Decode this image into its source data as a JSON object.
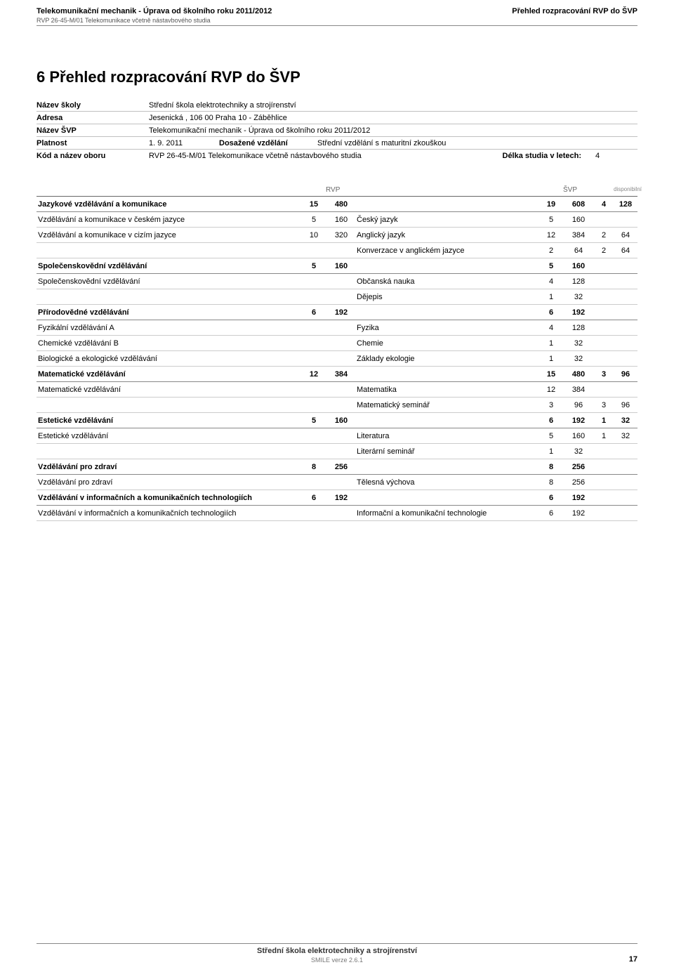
{
  "header": {
    "left_line1": "Telekomunikační mechanik - Úprava od školního roku 2011/2012",
    "left_line2": "RVP 26-45-M/01 Telekomunikace včetně nástavbového studia",
    "right": "Přehled rozpracování RVP do ŠVP"
  },
  "section_title": "6 Přehled rozpracování RVP do ŠVP",
  "info": {
    "nazev_skoly_label": "Název školy",
    "nazev_skoly": "Střední škola elektrotechniky a strojírenství",
    "adresa_label": "Adresa",
    "adresa": "Jesenická , 106 00  Praha 10 - Záběhlice",
    "nazev_svp_label": "Název ŠVP",
    "nazev_svp": "Telekomunikační mechanik - Úprava od školního roku 2011/2012",
    "platnost_label": "Platnost",
    "platnost": "1. 9. 2011",
    "dosazene_label": "Dosažené vzdělání",
    "dosazene": "Střední vzdělání s maturitní zkouškou",
    "kod_label": "Kód a název oboru",
    "kod": "RVP 26-45-M/01 Telekomunikace včetně nástavbového studia",
    "delka_label": "Délka studia v letech:",
    "delka": "4"
  },
  "thead": {
    "rvp": "RVP",
    "svp": "ŠVP",
    "disp": "disponibilní"
  },
  "rows": [
    {
      "type": "section",
      "name": "Jazykové vzdělávání a komunikace",
      "a": "15",
      "b": "480",
      "c": "19",
      "d": "608",
      "e": "4",
      "f": "128"
    },
    {
      "type": "sub",
      "name": "Vzdělávání a komunikace v českém jazyce",
      "a": "5",
      "b": "160",
      "subj": "Český jazyk",
      "c": "5",
      "d": "160",
      "e": "",
      "f": ""
    },
    {
      "type": "sub",
      "name": "Vzdělávání a komunikace v cizím jazyce",
      "a": "10",
      "b": "320",
      "subj": "Anglický jazyk",
      "c": "12",
      "d": "384",
      "e": "2",
      "f": "64"
    },
    {
      "type": "cont",
      "subj": "Konverzace v anglickém jazyce",
      "c": "2",
      "d": "64",
      "e": "2",
      "f": "64"
    },
    {
      "type": "section",
      "name": "Společenskovědní vzdělávání",
      "a": "5",
      "b": "160",
      "c": "5",
      "d": "160",
      "e": "",
      "f": ""
    },
    {
      "type": "sub",
      "name": "Společenskovědní vzdělávání",
      "a": "",
      "b": "",
      "subj": "Občanská nauka",
      "c": "4",
      "d": "128",
      "e": "",
      "f": ""
    },
    {
      "type": "cont",
      "subj": "Dějepis",
      "c": "1",
      "d": "32",
      "e": "",
      "f": ""
    },
    {
      "type": "section",
      "name": "Přírodovědné vzdělávání",
      "a": "6",
      "b": "192",
      "c": "6",
      "d": "192",
      "e": "",
      "f": ""
    },
    {
      "type": "sub",
      "name": "Fyzikální vzdělávání A",
      "a": "",
      "b": "",
      "subj": "Fyzika",
      "c": "4",
      "d": "128",
      "e": "",
      "f": ""
    },
    {
      "type": "sub",
      "name": "Chemické vzdělávání B",
      "a": "",
      "b": "",
      "subj": "Chemie",
      "c": "1",
      "d": "32",
      "e": "",
      "f": ""
    },
    {
      "type": "sub",
      "name": "Biologické a ekologické vzdělávání",
      "a": "",
      "b": "",
      "subj": "Základy ekologie",
      "c": "1",
      "d": "32",
      "e": "",
      "f": ""
    },
    {
      "type": "section",
      "name": "Matematické vzdělávání",
      "a": "12",
      "b": "384",
      "c": "15",
      "d": "480",
      "e": "3",
      "f": "96"
    },
    {
      "type": "sub",
      "name": "Matematické vzdělávání",
      "a": "",
      "b": "",
      "subj": "Matematika",
      "c": "12",
      "d": "384",
      "e": "",
      "f": ""
    },
    {
      "type": "cont",
      "subj": "Matematický seminář",
      "c": "3",
      "d": "96",
      "e": "3",
      "f": "96"
    },
    {
      "type": "section",
      "name": "Estetické vzdělávání",
      "a": "5",
      "b": "160",
      "c": "6",
      "d": "192",
      "e": "1",
      "f": "32"
    },
    {
      "type": "sub",
      "name": "Estetické vzdělávání",
      "a": "",
      "b": "",
      "subj": "Literatura",
      "c": "5",
      "d": "160",
      "e": "1",
      "f": "32"
    },
    {
      "type": "cont",
      "subj": "Literární seminář",
      "c": "1",
      "d": "32",
      "e": "",
      "f": ""
    },
    {
      "type": "section",
      "name": "Vzdělávání pro zdraví",
      "a": "8",
      "b": "256",
      "c": "8",
      "d": "256",
      "e": "",
      "f": ""
    },
    {
      "type": "sub",
      "name": "Vzdělávání pro zdraví",
      "a": "",
      "b": "",
      "subj": "Tělesná výchova",
      "c": "8",
      "d": "256",
      "e": "",
      "f": ""
    },
    {
      "type": "section",
      "name": "Vzdělávání v informačních a komunikačních technologiích",
      "a": "6",
      "b": "192",
      "c": "6",
      "d": "192",
      "e": "",
      "f": ""
    },
    {
      "type": "sub",
      "name": "Vzdělávání v informačních a komunikačních technologiích",
      "a": "",
      "b": "",
      "subj": "Informační a komunikační technologie",
      "c": "6",
      "d": "192",
      "e": "",
      "f": ""
    }
  ],
  "footer": {
    "line1": "Střední škola elektrotechniky a strojírenství",
    "line2": "SMILE verze 2.6.1",
    "page": "17"
  }
}
